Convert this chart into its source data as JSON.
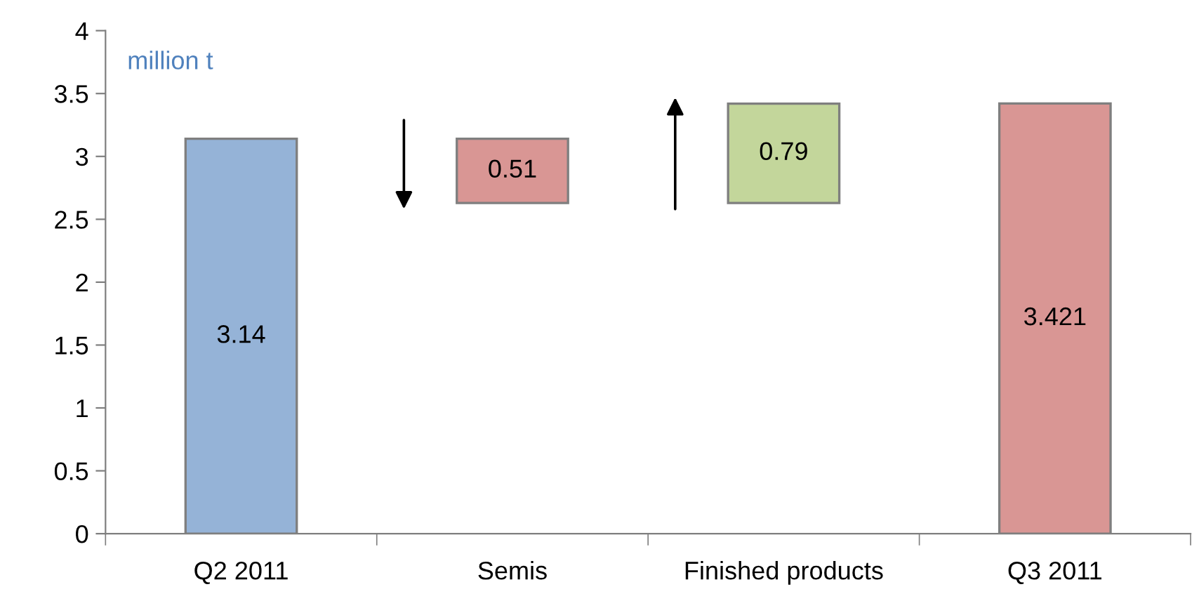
{
  "chart_data": {
    "type": "bar",
    "categories": [
      "Q2 2011",
      "Semis",
      "Finished products",
      "Q3 2011"
    ],
    "values": [
      3.14,
      0.51,
      0.79,
      3.421
    ],
    "base": [
      0,
      2.63,
      2.63,
      0
    ],
    "colors": [
      "#95b3d7",
      "#d99694",
      "#c3d69b",
      "#d99694"
    ],
    "data_labels": true,
    "ylim": [
      0,
      4
    ],
    "yticks": [
      0,
      0.5,
      1,
      1.5,
      2,
      2.5,
      3,
      3.5,
      4
    ],
    "grid": false,
    "legend": false,
    "annotations": [
      "million t"
    ]
  }
}
